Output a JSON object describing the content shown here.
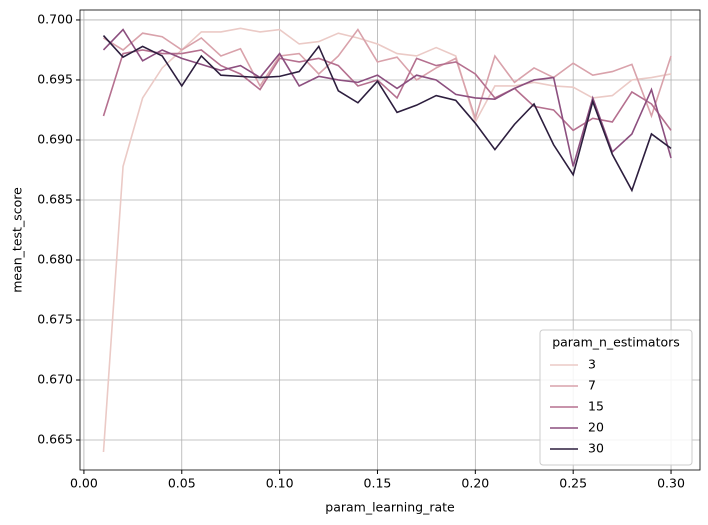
{
  "chart_data": {
    "type": "line",
    "x_label": "param_learning_rate",
    "y_label": "mean_test_score",
    "x": [
      0.01,
      0.02,
      0.03,
      0.04,
      0.05,
      0.06,
      0.07,
      0.08,
      0.09,
      0.1,
      0.11,
      0.12,
      0.13,
      0.14,
      0.15,
      0.16,
      0.17,
      0.18,
      0.19,
      0.2,
      0.21,
      0.22,
      0.23,
      0.24,
      0.25,
      0.26,
      0.27,
      0.28,
      0.29,
      0.3
    ],
    "series": [
      {
        "name": "3",
        "color": "#ebcac6",
        "values": [
          0.664,
          0.6878,
          0.6935,
          0.696,
          0.6975,
          0.699,
          0.699,
          0.6993,
          0.699,
          0.6992,
          0.698,
          0.6982,
          0.6989,
          0.6985,
          0.698,
          0.6972,
          0.697,
          0.6977,
          0.697,
          0.6915,
          0.6945,
          0.6945,
          0.6948,
          0.6945,
          0.6944,
          0.6935,
          0.6937,
          0.695,
          0.6952,
          0.6955
        ]
      },
      {
        "name": "7",
        "color": "#d9a2ab",
        "values": [
          0.6985,
          0.6975,
          0.6989,
          0.6986,
          0.6975,
          0.6985,
          0.697,
          0.6976,
          0.6945,
          0.697,
          0.6972,
          0.6955,
          0.697,
          0.6992,
          0.6965,
          0.6969,
          0.695,
          0.696,
          0.6968,
          0.6918,
          0.697,
          0.6948,
          0.696,
          0.6952,
          0.6964,
          0.6954,
          0.6957,
          0.6963,
          0.692,
          0.697
        ]
      },
      {
        "name": "15",
        "color": "#b5708f",
        "values": [
          0.692,
          0.6972,
          0.6975,
          0.6972,
          0.6972,
          0.6975,
          0.6962,
          0.6955,
          0.6942,
          0.6968,
          0.6965,
          0.6968,
          0.6962,
          0.6945,
          0.695,
          0.6935,
          0.6968,
          0.6962,
          0.6965,
          0.6955,
          0.6935,
          0.6943,
          0.6928,
          0.6925,
          0.6908,
          0.6918,
          0.6915,
          0.694,
          0.693,
          0.6908
        ]
      },
      {
        "name": "20",
        "color": "#8c4f7f",
        "values": [
          0.6975,
          0.6992,
          0.6966,
          0.6975,
          0.6968,
          0.6963,
          0.6958,
          0.6962,
          0.6952,
          0.6972,
          0.6945,
          0.6953,
          0.695,
          0.6948,
          0.6954,
          0.6943,
          0.6954,
          0.695,
          0.6938,
          0.6935,
          0.6934,
          0.6943,
          0.695,
          0.6952,
          0.6878,
          0.6935,
          0.689,
          0.6905,
          0.6942,
          0.6885
        ]
      },
      {
        "name": "30",
        "color": "#2d1e3e",
        "values": [
          0.6987,
          0.6969,
          0.6978,
          0.697,
          0.6945,
          0.697,
          0.6954,
          0.6953,
          0.6952,
          0.6953,
          0.6957,
          0.6978,
          0.6941,
          0.6931,
          0.6949,
          0.6923,
          0.6929,
          0.6937,
          0.6933,
          0.6914,
          0.6892,
          0.6913,
          0.693,
          0.6896,
          0.6871,
          0.6932,
          0.6888,
          0.6858,
          0.6905,
          0.6893
        ]
      }
    ],
    "xlim": [
      -0.002,
      0.3148
    ],
    "ylim": [
      0.6625,
      0.70083
    ],
    "xticks": [
      {
        "value": 0,
        "label": "0.00"
      },
      {
        "value": 0.05,
        "label": "0.05"
      },
      {
        "value": 0.1,
        "label": "0.10"
      },
      {
        "value": 0.15,
        "label": "0.15"
      },
      {
        "value": 0.2,
        "label": "0.20"
      },
      {
        "value": 0.25,
        "label": "0.25"
      },
      {
        "value": 0.3,
        "label": "0.30"
      }
    ],
    "yticks": [
      {
        "value": 0.665,
        "label": "0.665"
      },
      {
        "value": 0.67,
        "label": "0.670"
      },
      {
        "value": 0.675,
        "label": "0.675"
      },
      {
        "value": 0.68,
        "label": "0.680"
      },
      {
        "value": 0.685,
        "label": "0.685"
      },
      {
        "value": 0.69,
        "label": "0.690"
      },
      {
        "value": 0.695,
        "label": "0.695"
      },
      {
        "value": 0.7,
        "label": "0.700"
      }
    ],
    "grid": true,
    "legend_title": "param_n_estimators",
    "legend_position": "lower right"
  }
}
